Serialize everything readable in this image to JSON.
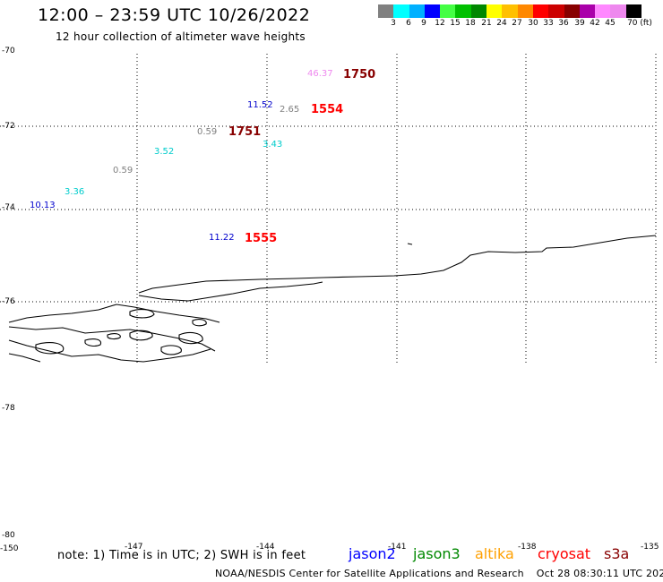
{
  "header": {
    "title": "12:00 – 23:59 UTC 10/26/2022",
    "subtitle": "12 hour collection of altimeter wave heights"
  },
  "legend": {
    "colors": [
      "#808080",
      "#00ffff",
      "#00b0ff",
      "#0000ff",
      "#44ff44",
      "#00c000",
      "#008800",
      "#ffff00",
      "#ffc000",
      "#ff8800",
      "#ff0000",
      "#cc0000",
      "#880000",
      "#aa00aa",
      "#ff88ff",
      "#ee88ee",
      "#000000"
    ],
    "labels": [
      "3",
      "6",
      "9",
      "12",
      "15",
      "18",
      "21",
      "24",
      "27",
      "30",
      "33",
      "36",
      "39",
      "42",
      "45",
      "70 (ft)"
    ]
  },
  "axes": {
    "latitudes": [
      "-70",
      "-72",
      "-74",
      "-76",
      "-78",
      "-80"
    ],
    "longitudes": [
      "-150",
      "-147",
      "-144",
      "-141",
      "-138",
      "-135"
    ]
  },
  "observations": [
    {
      "text": "46.37",
      "color": "#ee88ee"
    },
    {
      "text": "1750",
      "color": "#880000"
    },
    {
      "text": "11.52",
      "color": "#0000cc"
    },
    {
      "text": "2.65",
      "color": "#808080"
    },
    {
      "text": "1554",
      "color": "#ff0000"
    },
    {
      "text": "0.59",
      "color": "#808080"
    },
    {
      "text": "1751",
      "color": "#880000"
    },
    {
      "text": "3.43",
      "color": "#00cccc"
    },
    {
      "text": "3.52",
      "color": "#00cccc"
    },
    {
      "text": "0.59",
      "color": "#808080"
    },
    {
      "text": "3.36",
      "color": "#00cccc"
    },
    {
      "text": "10.13",
      "color": "#0000cc"
    },
    {
      "text": "11.22",
      "color": "#0000cc"
    },
    {
      "text": "1555",
      "color": "#ff0000"
    }
  ],
  "footer": {
    "note": "note: 1) Time is in UTC; 2) SWH is in feet",
    "satellites": [
      {
        "name": "jason2",
        "color": "#0000ff"
      },
      {
        "name": "jason3",
        "color": "#008800"
      },
      {
        "name": "altika",
        "color": "#ffa000"
      },
      {
        "name": "cryosat",
        "color": "#ff0000"
      },
      {
        "name": "s3a",
        "color": "#880000"
      }
    ],
    "credit": "NOAA/NESDIS Center for Satellite Applications and Research",
    "timestamp": "Oct 28 08:30:11 UTC 2022"
  }
}
